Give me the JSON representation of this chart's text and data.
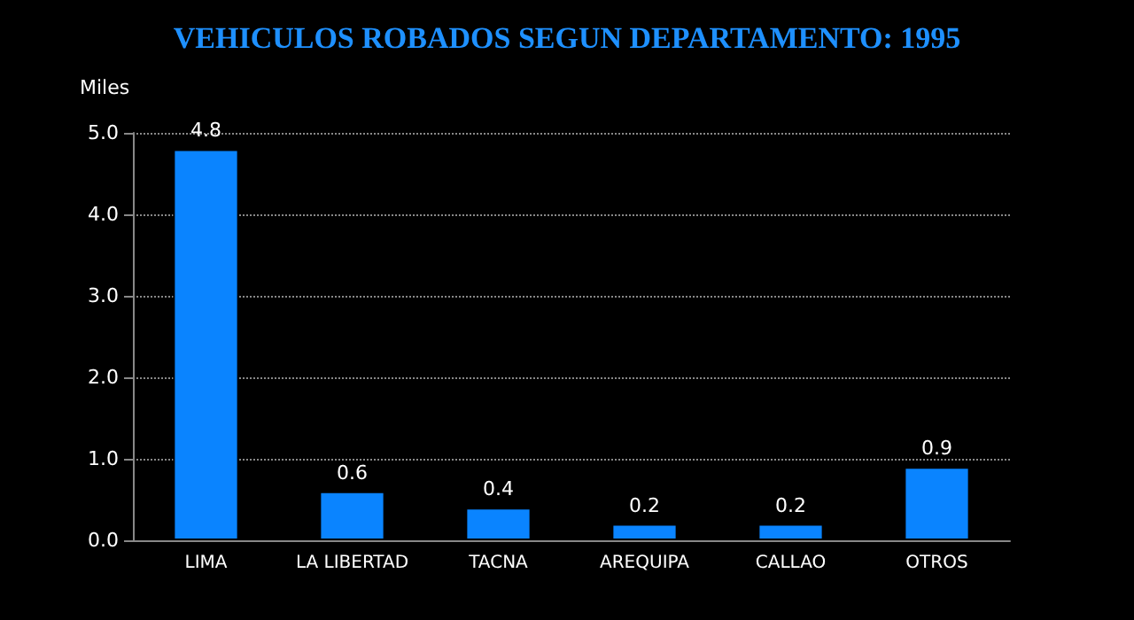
{
  "chart_data": {
    "type": "bar",
    "title": "VEHICULOS ROBADOS SEGUN DEPARTAMENTO: 1995",
    "ylabel": "Miles",
    "categories": [
      "LIMA",
      "LA LIBERTAD",
      "TACNA",
      "AREQUIPA",
      "CALLAO",
      "OTROS"
    ],
    "values": [
      4.8,
      0.6,
      0.4,
      0.2,
      0.2,
      0.9
    ],
    "color": "#0a84ff",
    "ylim": [
      0,
      5
    ],
    "yticks": [
      {
        "value": 0,
        "label": "0.0"
      },
      {
        "value": 1,
        "label": "1.0"
      },
      {
        "value": 2,
        "label": "2.0"
      },
      {
        "value": 3,
        "label": "3.0"
      },
      {
        "value": 4,
        "label": "4.0"
      },
      {
        "value": 5,
        "label": "5.0"
      }
    ],
    "grid": "y",
    "data_labels": true
  }
}
